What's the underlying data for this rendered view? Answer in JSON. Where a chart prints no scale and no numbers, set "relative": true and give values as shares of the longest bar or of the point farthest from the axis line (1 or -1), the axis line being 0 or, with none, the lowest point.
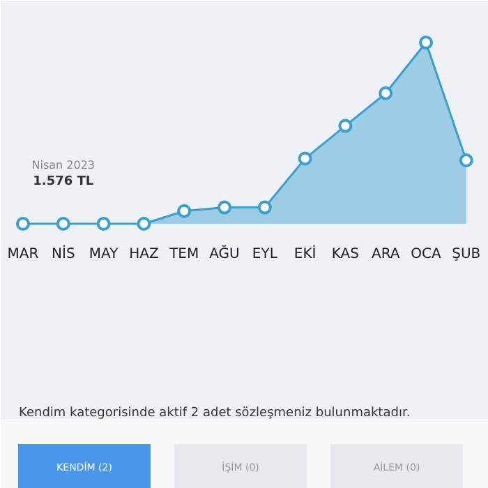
{
  "chart_data": {
    "type": "area",
    "relative": true,
    "marker": "circle",
    "color": "#3a9fd0",
    "categories": [
      "MAR",
      "NİS",
      "MAY",
      "HAZ",
      "TEM",
      "AĞU",
      "EYL",
      "EKİ",
      "KAS",
      "ARA",
      "OCA",
      "ŞUB"
    ],
    "values": [
      0,
      0,
      0,
      0,
      0.07,
      0.09,
      0.09,
      0.36,
      0.54,
      0.72,
      1,
      0.35
    ],
    "annotations": [
      {
        "text": "Nisan 2023\n1.576 TL",
        "x": "NİS",
        "y": 0
      },
      "Kendim kategorisinde aktif 2 adet sözleşmeniz bulunmaktadır.",
      "KENDİM (2)",
      "İŞİM (0)",
      "AİLEM (0)"
    ]
  }
}
